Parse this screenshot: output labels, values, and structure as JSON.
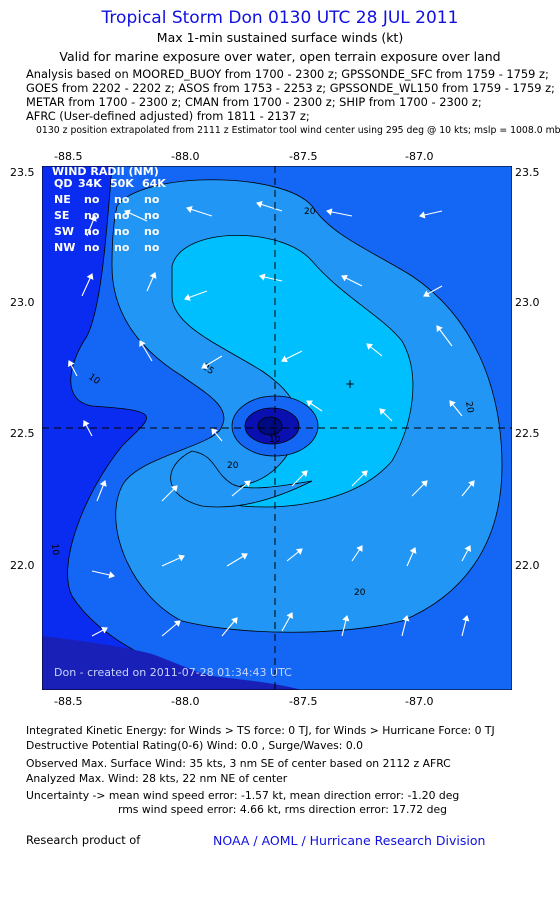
{
  "header": {
    "title": "Tropical Storm Don 0130 UTC 28 JUL 2011",
    "subtitle": "Max 1-min sustained surface winds (kt)",
    "valid": "Valid for marine exposure over water, open terrain exposure over land"
  },
  "sources": [
    "Analysis based on MOORED_BUOY from 1700 - 2300 z; GPSSONDE_SFC from 1759 - 1759 z;",
    "GOES from 2202 - 2202 z; ASOS from 1753 - 2253 z; GPSSONDE_WL150 from 1759 - 1759 z;",
    "METAR from 1700 - 2300 z; CMAN from 1700 - 2300 z; SHIP from 1700 - 2300 z;",
    "AFRC (User-defined adjusted) from 1811 - 2137 z;"
  ],
  "extrapolation_note": "0130 z position extrapolated from 2111 z Estimator tool wind center using 295 deg @ 10 kts; mslp = 1008.0 mb",
  "map": {
    "lon_ticks": [
      "-88.5",
      "-88.0",
      "-87.5",
      "-87.0"
    ],
    "lat_ticks": [
      "23.5",
      "23.0",
      "22.5",
      "22.0"
    ],
    "lon_range": [
      -88.7,
      -86.9
    ],
    "lat_range": [
      21.55,
      23.5
    ],
    "center": {
      "lon": -87.65,
      "lat": 22.53
    },
    "analyzed_max_marker": {
      "lon": -87.3,
      "lat": 22.69
    },
    "contour_labels": [
      "20",
      "20",
      "20",
      "20",
      "10",
      "10",
      "10",
      "25"
    ],
    "wind_radii": {
      "title": "WIND RADII (NM)",
      "header": [
        "QD",
        "34K",
        "50K",
        "64K"
      ],
      "rows": [
        [
          "NE",
          "no",
          "no",
          "no"
        ],
        [
          "SE",
          "no",
          "no",
          "no"
        ],
        [
          "SW",
          "no",
          "no",
          "no"
        ],
        [
          "NW",
          "no",
          "no",
          "no"
        ]
      ]
    },
    "credit": "Don - created on 2011-07-28 01:34:43 UTC",
    "colors": {
      "band_lt10": "#0a2cf0",
      "band_10_20": "#1466f5",
      "band_20_30": "#2196f5",
      "band_30_plus": "#00bfff",
      "core_dark": "#0a10b0",
      "core_darker": "#000a80",
      "land": "#1820b8"
    }
  },
  "stats": {
    "ike": "Integrated Kinetic Energy: for Winds > TS force: 0 TJ, for Winds > Hurricane Force: 0 TJ",
    "destructive": "Destructive Potential Rating(0-6)   Wind: 0.0 , Surge/Waves: 0.0",
    "observed": "Observed Max. Surface Wind: 35 kts, 3 nm SE of center based on 2112 z AFRC",
    "analyzed": "Analyzed Max. Wind: 28 kts, 22 nm NE of center",
    "uncertainty1": "Uncertainty -> mean wind speed error:  -1.57 kt,   mean direction error:  -1.20 deg",
    "uncertainty2": "rms wind speed error: 4.66 kt,   rms direction error: 17.72 deg"
  },
  "footer": {
    "research": "Research product of",
    "org": "NOAA / AOML / Hurricane Research Division"
  }
}
